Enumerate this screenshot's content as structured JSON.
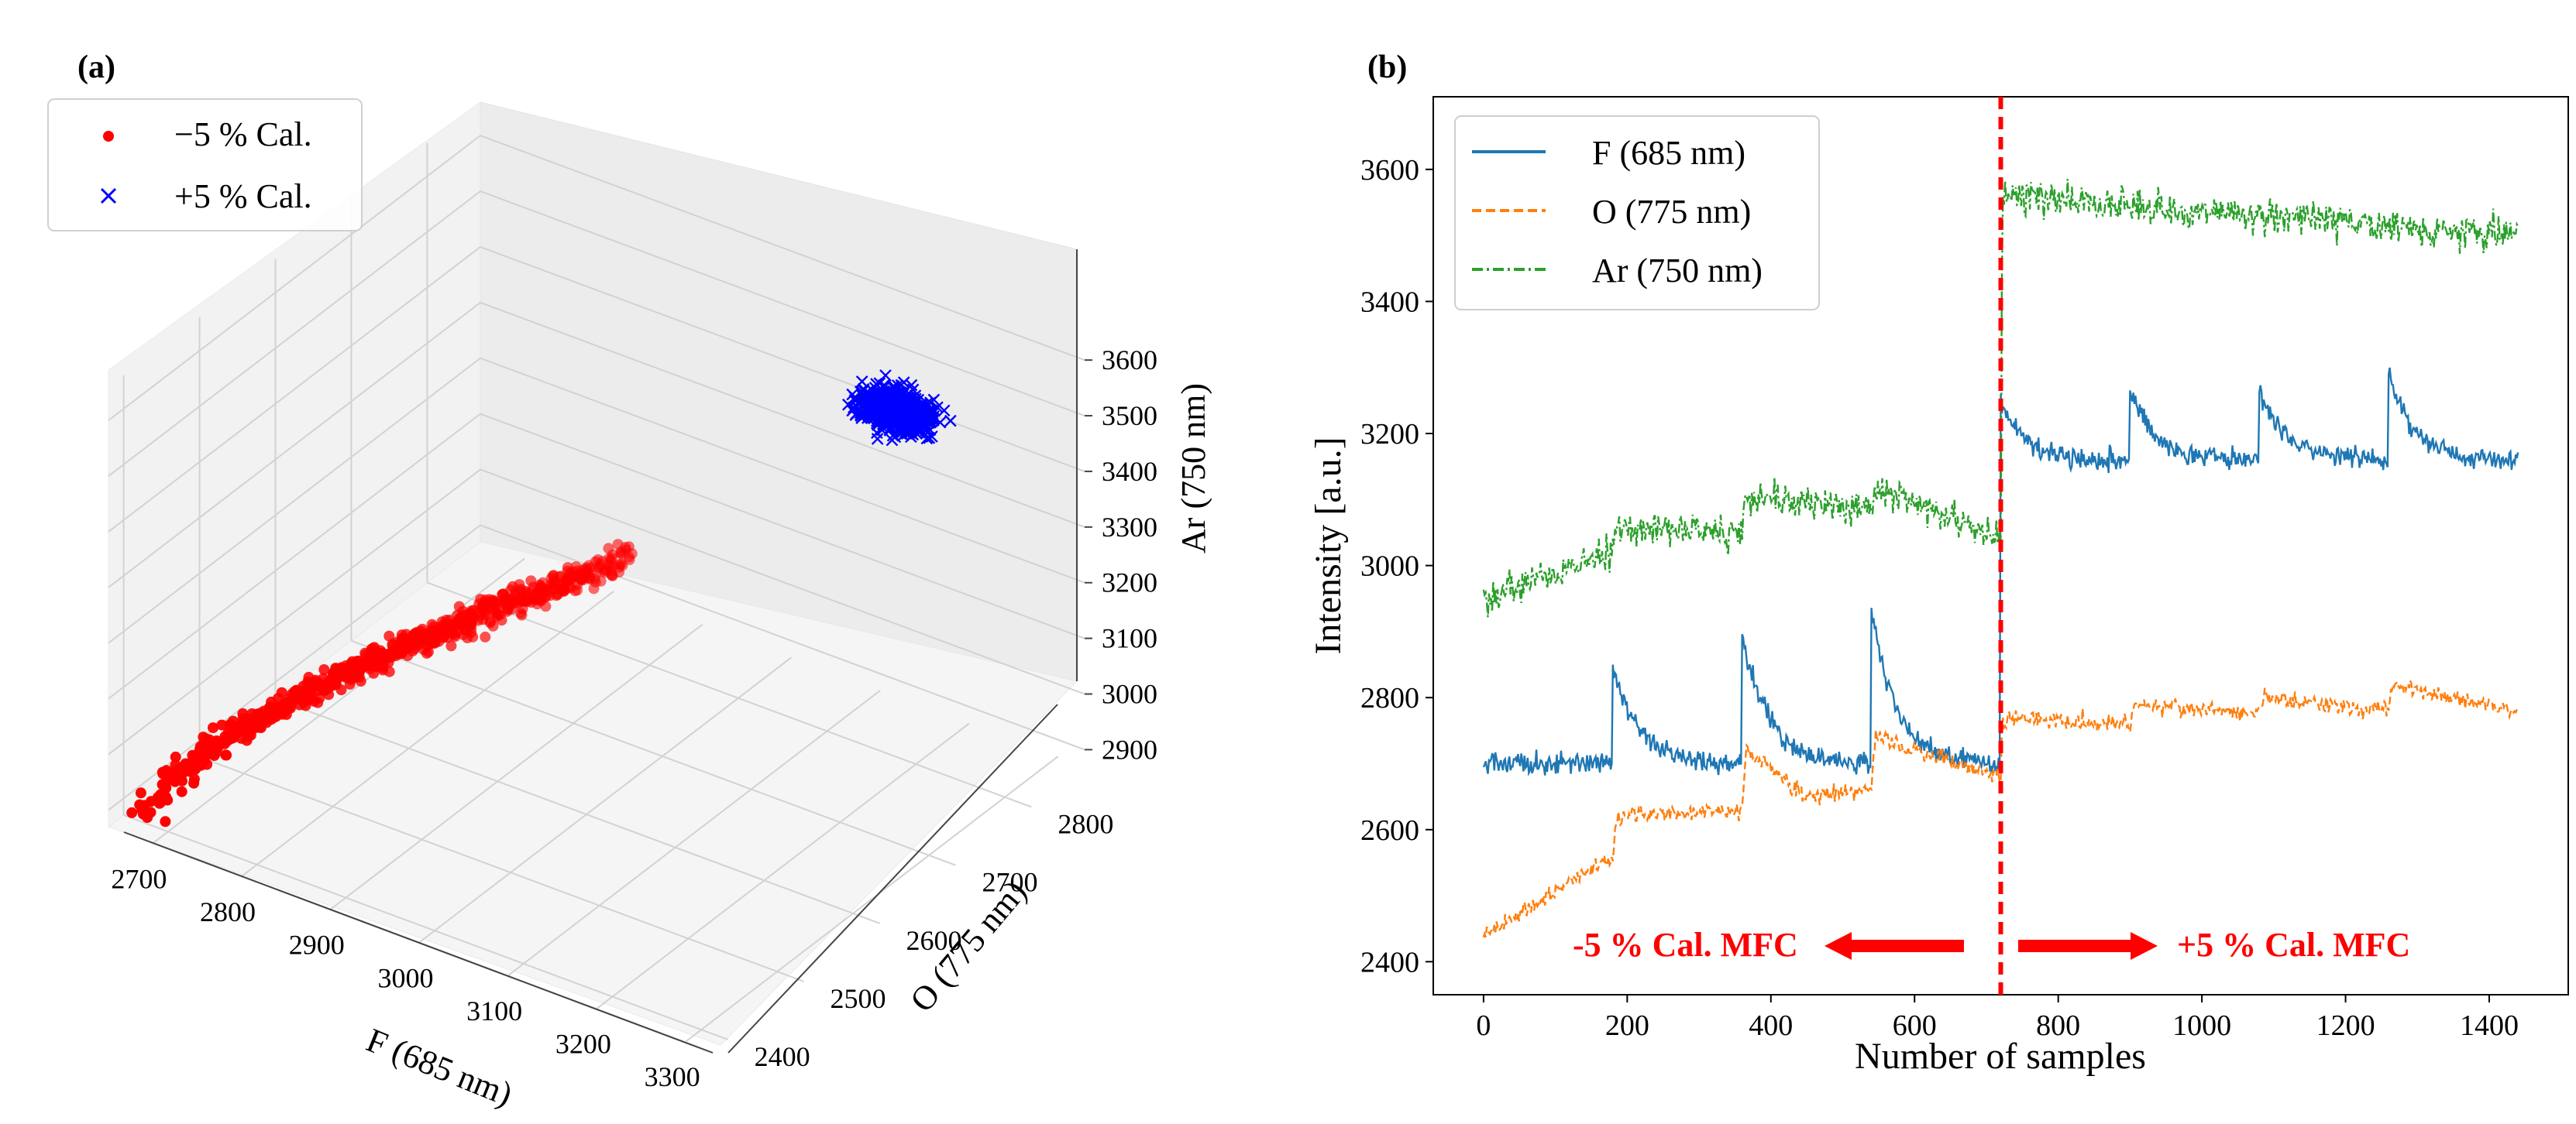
{
  "panel_a": {
    "label": "(a)",
    "legend": [
      {
        "name": "−5 % Cal.",
        "marker": "dot",
        "color": "#ff0000"
      },
      {
        "name": "+5 % Cal.",
        "marker": "x",
        "color": "#0000ff"
      }
    ]
  },
  "panel_b": {
    "label": "(b)",
    "annotation_left": "-5 % Cal. MFC",
    "annotation_right": "+5 % Cal. MFC",
    "annotation_color": "#ff0000"
  },
  "chart_data": [
    {
      "type": "scatter",
      "projection": "3d",
      "xlabel": "F (685 nm)",
      "ylabel": "O (775 nm)",
      "zlabel": "Ar (750 nm)",
      "xticks": [
        2700,
        2800,
        2900,
        3000,
        3100,
        3200,
        3300
      ],
      "yticks": [
        2400,
        2500,
        2600,
        2700,
        2800
      ],
      "zticks": [
        2900,
        3000,
        3100,
        3200,
        3300,
        3400,
        3500,
        3600
      ],
      "xlim": [
        2650,
        3330
      ],
      "ylim": [
        2380,
        2870
      ],
      "zlim": [
        2870,
        3660
      ],
      "series": [
        {
          "name": "−5 % Cal.",
          "color": "#ff0000",
          "clusters": {
            "F": [
              2680,
              2920
            ],
            "O": [
              2400,
              2740
            ],
            "Ar": [
              2890,
              3130
            ]
          },
          "n_points": 720
        },
        {
          "name": "+5 % Cal.",
          "color": "#0000ff",
          "clusters": {
            "F": [
              3100,
              3290
            ],
            "O": [
              2730,
              2830
            ],
            "Ar": [
              3430,
              3620
            ]
          },
          "n_points": 720
        }
      ]
    },
    {
      "type": "line",
      "xlabel": "Number of samples",
      "ylabel": "Intensity [a.u.]",
      "xticks": [
        0,
        200,
        400,
        600,
        800,
        1000,
        1200,
        1400
      ],
      "yticks": [
        2400,
        2600,
        2800,
        3000,
        3200,
        3400,
        3600
      ],
      "xlim": [
        -70,
        1510
      ],
      "ylim": [
        2350,
        3710
      ],
      "boundary_x": 720,
      "legend_position": "top-left",
      "series": [
        {
          "name": "F (685 nm)",
          "color": "#1f77b4",
          "style": "solid",
          "baseline_left": 2700,
          "baseline_right": 3160,
          "spikes": [
            [
              180,
              2850
            ],
            [
              360,
              2900
            ],
            [
              540,
              2930
            ],
            [
              720,
              3250
            ],
            [
              900,
              3265
            ],
            [
              1080,
              3270
            ],
            [
              1260,
              3290
            ]
          ]
        },
        {
          "name": "O (775 nm)",
          "color": "#ff7f0e",
          "style": "dashed",
          "segments": [
            [
              0,
              2440
            ],
            [
              180,
              2560
            ],
            [
              185,
              2620
            ],
            [
              360,
              2630
            ],
            [
              365,
              2720
            ],
            [
              450,
              2650
            ],
            [
              540,
              2660
            ],
            [
              545,
              2740
            ],
            [
              720,
              2680
            ],
            [
              722,
              2770
            ],
            [
              900,
              2760
            ],
            [
              905,
              2790
            ],
            [
              1080,
              2775
            ],
            [
              1085,
              2800
            ],
            [
              1260,
              2780
            ],
            [
              1265,
              2820
            ],
            [
              1440,
              2780
            ]
          ]
        },
        {
          "name": "Ar (750 nm)",
          "color": "#2ca02c",
          "style": "dashdot",
          "segments": [
            [
              0,
              2950
            ],
            [
              180,
              3020
            ],
            [
              185,
              3060
            ],
            [
              360,
              3050
            ],
            [
              365,
              3110
            ],
            [
              540,
              3080
            ],
            [
              545,
              3120
            ],
            [
              720,
              3040
            ],
            [
              722,
              3560
            ],
            [
              1440,
              3500
            ]
          ]
        }
      ]
    }
  ]
}
